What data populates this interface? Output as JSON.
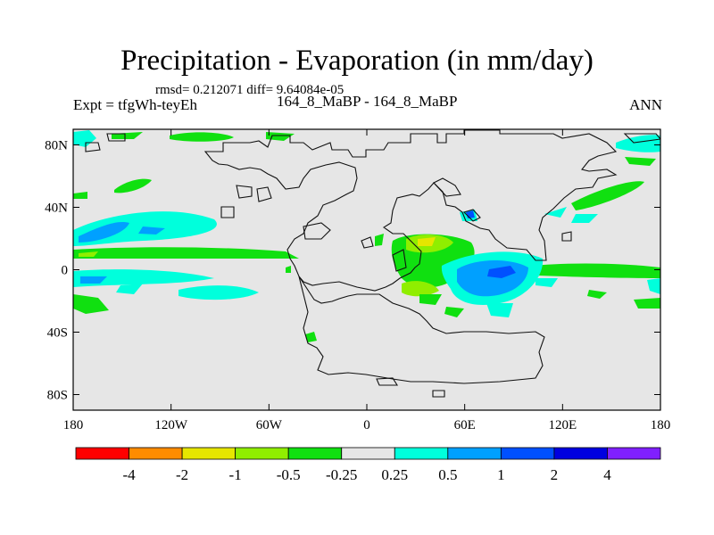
{
  "chart_data": {
    "type": "heatmap",
    "title": "Precipitation - Evaporation (in mm/day)",
    "subtitle": "rmsd= 0.212071  diff= 9.64084e-05",
    "left_label": "Expt = tfgWh-teyEh",
    "center_label": "164_8_MaBP - 164_8_MaBP",
    "right_label": "ANN",
    "x_ticks": [
      "180",
      "120W",
      "60W",
      "0",
      "60E",
      "120E",
      "180"
    ],
    "y_ticks": [
      "80N",
      "40N",
      "0",
      "40S",
      "80S"
    ],
    "xlim": [
      -180,
      180
    ],
    "ylim": [
      -90,
      90
    ],
    "colorbar_levels": [
      "-4",
      "-2",
      "-1",
      "-0.5",
      "-0.25",
      "0.25",
      "0.5",
      "1",
      "2",
      "4"
    ],
    "colorbar_colors": [
      "#ff0000",
      "#ff8c00",
      "#e6e600",
      "#90ee00",
      "#10e010",
      "#e6e6e6",
      "#00ffdc",
      "#00a0ff",
      "#0050ff",
      "#0000e0",
      "#8020ff"
    ],
    "background_color": "#e6e6e6"
  }
}
